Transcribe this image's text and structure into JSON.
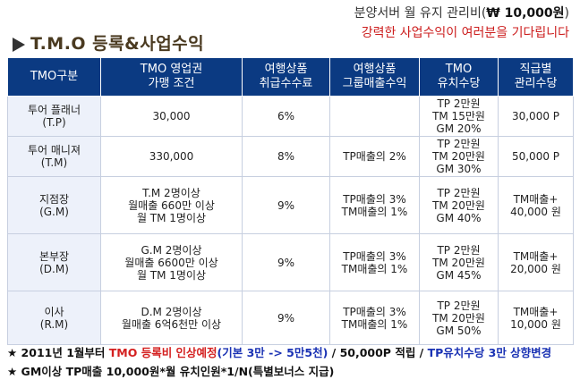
{
  "title": "T.M.O 등록&사업수익",
  "header_note": {
    "line1_prefix": "분양서버 월 유지 관리비(",
    "line1_amount": "₩ 10,000원",
    "line1_suffix": ")",
    "line2": "강력한 사업수익이 여러분을 기다립니다"
  },
  "columns": [
    {
      "lines": [
        "TMO구분"
      ]
    },
    {
      "lines": [
        "TMO 영업권",
        "가맹 조건"
      ]
    },
    {
      "lines": [
        "여행상품",
        "취급수수료"
      ]
    },
    {
      "lines": [
        "여행상품",
        "그룹매출수익"
      ]
    },
    {
      "lines": [
        "TMO",
        "유치수당"
      ]
    },
    {
      "lines": [
        "직급별",
        "관리수당"
      ]
    }
  ],
  "rows": [
    {
      "grade": [
        "투어 플래너",
        "(T.P)"
      ],
      "condition": [
        "30,000"
      ],
      "commission": [
        "6%"
      ],
      "group_revenue": [],
      "recruit": [
        "TP 2만원",
        "TM 15만원",
        "GM 20%"
      ],
      "manage": [
        "30,000 P"
      ]
    },
    {
      "grade": [
        "투어 매니져",
        "(T.M)"
      ],
      "condition": [
        "330,000"
      ],
      "commission": [
        "8%"
      ],
      "group_revenue": [
        "TP매출의 2%"
      ],
      "recruit": [
        "TP 2만원",
        "TM 20만원",
        "GM 30%"
      ],
      "manage": [
        "50,000 P"
      ]
    },
    {
      "grade": [
        "지점장",
        "(G.M)"
      ],
      "condition": [
        "T.M 2명이상",
        "월매출 660만 이상",
        "월 TM 1명이상"
      ],
      "commission": [
        "9%"
      ],
      "group_revenue": [
        "TP매출의 3%",
        "TM매출의 1%"
      ],
      "recruit": [
        "TP 2만원",
        "TM 20만원",
        "GM 40%"
      ],
      "manage": [
        "TM매출+",
        "40,000 원"
      ]
    },
    {
      "grade": [
        "본부장",
        "(D.M)"
      ],
      "condition": [
        "G.M 2명이상",
        "월매출 6600만 이상",
        "월 TM 1명이상"
      ],
      "commission": [
        "9%"
      ],
      "group_revenue": [
        "TP매출의 3%",
        "TM매출의 1%"
      ],
      "recruit": [
        "TP 2만원",
        "TM 20만원",
        "GM 45%"
      ],
      "manage": [
        "TM매출+",
        "20,000 원"
      ]
    },
    {
      "grade": [
        "이사",
        "(R.M)"
      ],
      "condition": [
        "D.M 2명이상",
        "월매출 6억6천만 이상"
      ],
      "commission": [
        "9%"
      ],
      "group_revenue": [
        "TP매출의 3%",
        "TM매출의 1%"
      ],
      "recruit": [
        "TP 2만원",
        "TM 20만원",
        "GM 50%"
      ],
      "manage": [
        "TM매출+",
        "10,000 원"
      ]
    }
  ],
  "footer": {
    "line1": {
      "p1": "★ 2011년 1월부터 ",
      "p2": "TMO 등록비 인상예정",
      "p3": "(기본 3만 -> 5만5천)",
      "p4": " / 50,000P 적립 / ",
      "p5": "TP유치수당 3만 상향변경"
    },
    "line2": "★ GM이상 TP매출 10,000원*월 유치인원*1/N(특별보너스 지급)"
  },
  "colors": {
    "header_bg": "#0b3a82",
    "first_col_bg": "#edf1fa",
    "accent_red": "#d42020",
    "accent_blue": "#1a32b4"
  }
}
